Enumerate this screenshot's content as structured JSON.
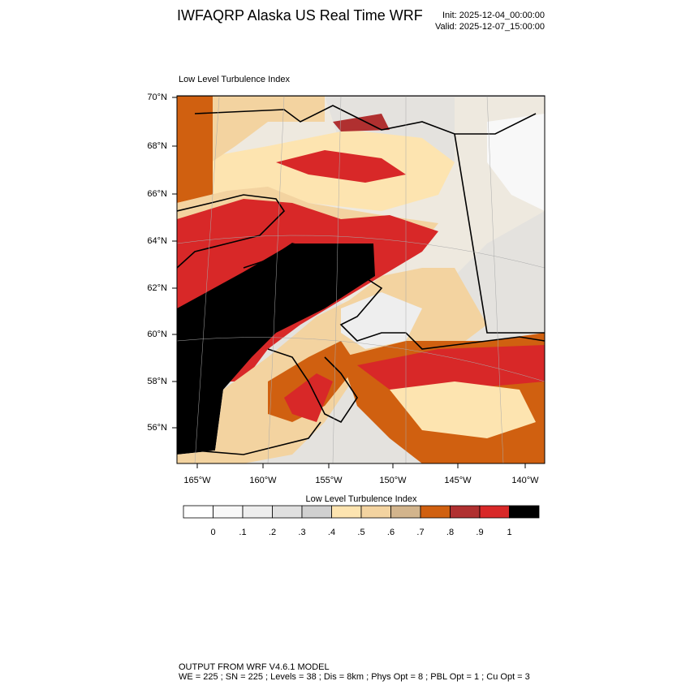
{
  "header": {
    "title": "IWFAQRP Alaska US Real Time WRF",
    "init": "Init: 2025-12-04_00:00:00",
    "valid": "Valid: 2025-12-07_15:00:00"
  },
  "map": {
    "label": "Low Level Turbulence Index",
    "lat_labels": [
      "70°N",
      "68°N",
      "66°N",
      "64°N",
      "62°N",
      "60°N",
      "58°N",
      "56°N"
    ],
    "lon_labels": [
      "165°W",
      "160°W",
      "155°W",
      "150°W",
      "145°W",
      "140°W"
    ]
  },
  "colorbar": {
    "title": "Low Level Turbulence Index",
    "colors": [
      "#ffffff",
      "#f8f8f8",
      "#eeeeee",
      "#e0e0e0",
      "#d0d0d0",
      "#fde4b0",
      "#f3d3a0",
      "#d2b48c",
      "#d06010",
      "#b03030",
      "#d82828",
      "#000000"
    ],
    "labels": [
      "0",
      ".1",
      ".2",
      ".3",
      ".4",
      ".5",
      ".6",
      ".7",
      ".8",
      ".9",
      "1"
    ]
  },
  "footer": {
    "line1": "OUTPUT FROM WRF V4.6.1 MODEL",
    "line2": "WE = 225 ; SN = 225 ; Levels = 38 ; Dis = 8km ; Phys Opt = 8 ; PBL Opt = 1 ; Cu Opt = 3"
  }
}
